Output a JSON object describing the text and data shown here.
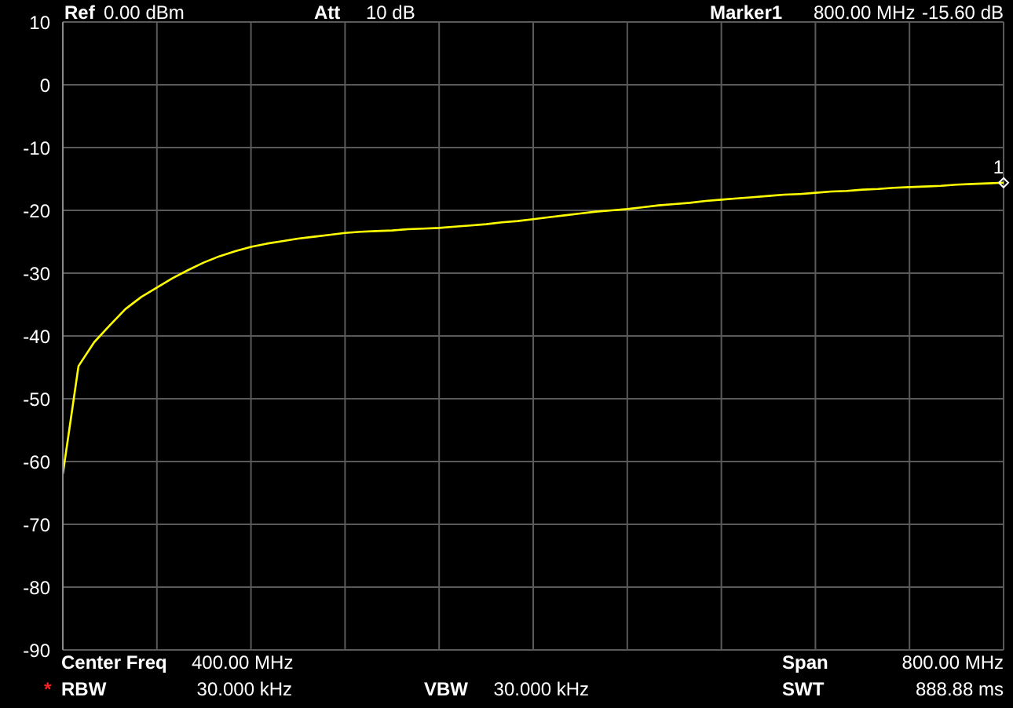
{
  "chart_data": {
    "type": "line",
    "ylim": [
      -90,
      10
    ],
    "categories": [
      null,
      null,
      null,
      null,
      null,
      null,
      null,
      null,
      null,
      null,
      null,
      null,
      null,
      null,
      null,
      null,
      null,
      null,
      null,
      null,
      null,
      null,
      null,
      null,
      null,
      null,
      null,
      null,
      null,
      null,
      null,
      null,
      null,
      null,
      null,
      null,
      null,
      null,
      null,
      null,
      null,
      null,
      null,
      null,
      null,
      null,
      null,
      null,
      null,
      null,
      null,
      null,
      null,
      null,
      null,
      null,
      null,
      null,
      null,
      null,
      null
    ],
    "yticks": [
      10,
      0,
      -10,
      -20,
      -30,
      -40,
      -50,
      -60,
      -70,
      -80,
      -90
    ],
    "tick_labels": "y",
    "grid": true,
    "marker": "none",
    "line_style": "solid",
    "series": [
      {
        "color": "#ffff00",
        "values": [
          -62,
          -44.8,
          -41,
          -38.3,
          -35.7,
          -33.8,
          -32.3,
          -30.8,
          -29.5,
          -28.3,
          -27.3,
          -26.5,
          -25.8,
          -25.3,
          -24.9,
          -24.5,
          -24.2,
          -23.9,
          -23.6,
          -23.4,
          -23.3,
          -23.2,
          -23,
          -22.9,
          -22.8,
          -22.6,
          -22.4,
          -22.2,
          -21.9,
          -21.7,
          -21.4,
          -21.1,
          -20.8,
          -20.5,
          -20.2,
          -20,
          -19.8,
          -19.5,
          -19.2,
          -19,
          -18.8,
          -18.5,
          -18.3,
          -18.1,
          -17.9,
          -17.7,
          -17.5,
          -17.4,
          -17.2,
          -17,
          -16.9,
          -16.7,
          -16.6,
          -16.4,
          -16.3,
          -16.2,
          -16.1,
          -15.9,
          -15.8,
          -15.7,
          -15.6
        ]
      }
    ],
    "annotations": [
      "Ref",
      "0.00 dBm",
      "Att",
      "10 dB",
      "Marker1",
      "800.00 MHz",
      "-15.60 dB",
      "Center Freq",
      "400.00 MHz",
      "Span",
      "800.00 MHz",
      "*",
      "RBW",
      "30.000 kHz",
      "VBW",
      "30.000 kHz",
      "SWT",
      "888.88 ms",
      {
        "text": "1",
        "y": -15.6
      }
    ]
  }
}
